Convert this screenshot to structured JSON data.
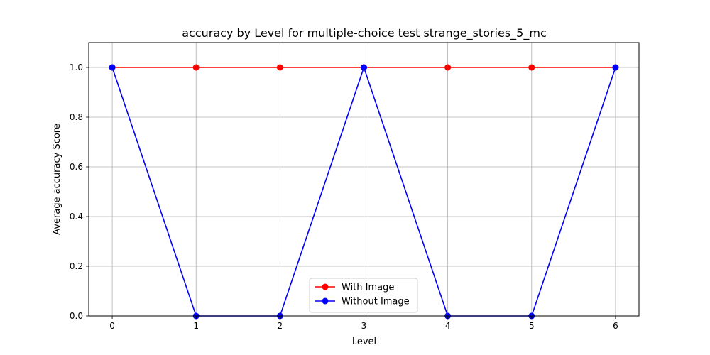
{
  "chart_data": {
    "type": "line",
    "title": "accuracy by Level for multiple-choice test strange_stories_5_mc",
    "xlabel": "Level",
    "ylabel": "Average accuracy Score",
    "x": [
      0,
      1,
      2,
      3,
      4,
      5,
      6
    ],
    "xticks": [
      "0",
      "1",
      "2",
      "3",
      "4",
      "5",
      "6"
    ],
    "yticks": [
      "0.0",
      "0.2",
      "0.4",
      "0.6",
      "0.8",
      "1.0"
    ],
    "xlim": [
      -0.28,
      6.28
    ],
    "ylim": [
      0,
      1.1
    ],
    "grid": true,
    "legend_position": "bottom-center",
    "series": [
      {
        "name": "With Image",
        "color": "#ff0000",
        "values": [
          1,
          1,
          1,
          1,
          1,
          1,
          1
        ]
      },
      {
        "name": "Without Image",
        "color": "#0000ff",
        "values": [
          1,
          0,
          0,
          1,
          0,
          0,
          1
        ]
      }
    ]
  }
}
